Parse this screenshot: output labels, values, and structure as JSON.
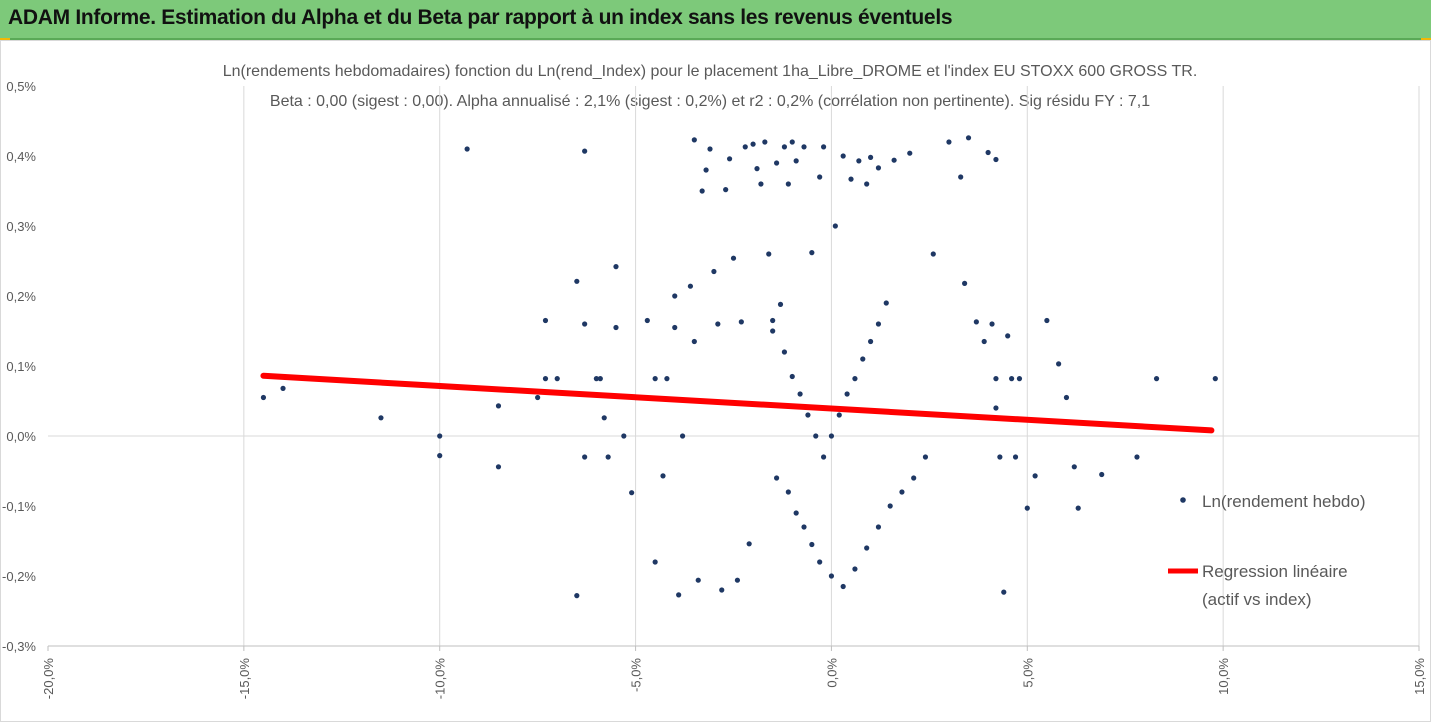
{
  "header": {
    "title": "ADAM Informe. Estimation du Alpha et du Beta par rapport à un index sans les revenus éventuels",
    "accent_color": "#7dc97a"
  },
  "chart_data": {
    "type": "scatter",
    "title": "Ln(rendements hebdomadaires) fonction du Ln(rend_Index) pour le placement 1ha_Libre_DROME et l'index EU STOXX 600 GROSS TR.",
    "subtitle": "Beta : 0,00 (sigest : 0,00). Alpha annualisé : 2,1% (sigest : 0,2%) et r2 : 0,2% (corrélation non pertinente). Sig résidu FY : 7,1",
    "xlabel": "",
    "ylabel": "",
    "xlim": [
      -20,
      15
    ],
    "ylim": [
      -0.3,
      0.5
    ],
    "x_unit": "%",
    "y_unit": "%",
    "x_ticks": [
      "-20,0%",
      "-15,0%",
      "-10,0%",
      "-5,0%",
      "0,0%",
      "5,0%",
      "10,0%",
      "15,0%"
    ],
    "y_ticks": [
      "-0,3%",
      "-0,2%",
      "-0,1%",
      "0,0%",
      "0,1%",
      "0,2%",
      "0,3%",
      "0,4%",
      "0,5%"
    ],
    "grid": "vertical",
    "legend_position": "right",
    "series": [
      {
        "name": "Ln(rendement hebdo)",
        "kind": "scatter",
        "color": "#1f3864",
        "points": [
          [
            -14.5,
            0.055
          ],
          [
            -14.0,
            0.068
          ],
          [
            -11.5,
            0.026
          ],
          [
            -10.0,
            0.0
          ],
          [
            -10.0,
            -0.028
          ],
          [
            -9.3,
            0.41
          ],
          [
            -8.5,
            0.043
          ],
          [
            -8.5,
            -0.044
          ],
          [
            -7.5,
            0.055
          ],
          [
            -7.3,
            0.165
          ],
          [
            -7.3,
            0.082
          ],
          [
            -7.0,
            0.082
          ],
          [
            -6.5,
            0.221
          ],
          [
            -6.5,
            -0.228
          ],
          [
            -6.3,
            0.407
          ],
          [
            -6.3,
            0.16
          ],
          [
            -6.3,
            -0.03
          ],
          [
            -6.0,
            0.082
          ],
          [
            -5.9,
            0.082
          ],
          [
            -5.8,
            0.026
          ],
          [
            -5.7,
            -0.03
          ],
          [
            -5.5,
            0.242
          ],
          [
            -5.5,
            0.155
          ],
          [
            -5.3,
            0.0
          ],
          [
            -5.1,
            -0.081
          ],
          [
            -5.0,
            0.055
          ],
          [
            -4.7,
            0.165
          ],
          [
            -4.5,
            0.082
          ],
          [
            -4.5,
            -0.18
          ],
          [
            -4.3,
            -0.057
          ],
          [
            -4.2,
            0.082
          ],
          [
            -4.0,
            0.2
          ],
          [
            -4.0,
            0.155
          ],
          [
            -3.9,
            -0.227
          ],
          [
            -3.8,
            0.0
          ],
          [
            -3.6,
            0.214
          ],
          [
            -3.5,
            0.423
          ],
          [
            -3.5,
            0.135
          ],
          [
            -3.4,
            -0.206
          ],
          [
            -3.3,
            0.35
          ],
          [
            -3.2,
            0.38
          ],
          [
            -3.1,
            0.41
          ],
          [
            -3.0,
            0.235
          ],
          [
            -2.9,
            0.16
          ],
          [
            -2.8,
            -0.22
          ],
          [
            -2.7,
            0.352
          ],
          [
            -2.6,
            0.396
          ],
          [
            -2.5,
            0.254
          ],
          [
            -2.4,
            -0.206
          ],
          [
            -2.3,
            0.163
          ],
          [
            -2.2,
            0.413
          ],
          [
            -2.1,
            -0.154
          ],
          [
            -2.0,
            0.417
          ],
          [
            -1.9,
            0.382
          ],
          [
            -1.8,
            0.36
          ],
          [
            -1.7,
            0.42
          ],
          [
            -1.6,
            0.26
          ],
          [
            -1.5,
            0.165
          ],
          [
            -1.4,
            0.39
          ],
          [
            -1.3,
            0.188
          ],
          [
            -1.2,
            0.413
          ],
          [
            -1.1,
            0.36
          ],
          [
            -1.0,
            0.42
          ],
          [
            -0.9,
            0.393
          ],
          [
            -0.7,
            0.413
          ],
          [
            -0.5,
            0.262
          ],
          [
            -0.3,
            0.37
          ],
          [
            -0.2,
            0.413
          ],
          [
            0.1,
            0.3
          ],
          [
            0.3,
            0.4
          ],
          [
            0.5,
            0.367
          ],
          [
            0.7,
            0.393
          ],
          [
            0.9,
            0.36
          ],
          [
            1.0,
            0.398
          ],
          [
            1.2,
            0.383
          ],
          [
            1.6,
            0.394
          ],
          [
            2.0,
            0.404
          ],
          [
            2.6,
            0.26
          ],
          [
            3.0,
            0.42
          ],
          [
            3.3,
            0.37
          ],
          [
            3.5,
            0.426
          ],
          [
            4.0,
            0.405
          ],
          [
            4.2,
            0.395
          ],
          [
            3.4,
            0.218
          ],
          [
            3.7,
            0.163
          ],
          [
            3.9,
            0.135
          ],
          [
            4.1,
            0.16
          ],
          [
            4.2,
            0.082
          ],
          [
            4.2,
            0.04
          ],
          [
            4.3,
            -0.03
          ],
          [
            4.4,
            -0.223
          ],
          [
            4.5,
            0.143
          ],
          [
            4.6,
            0.082
          ],
          [
            4.7,
            -0.03
          ],
          [
            4.8,
            0.082
          ],
          [
            5.0,
            -0.103
          ],
          [
            5.2,
            -0.057
          ],
          [
            5.5,
            0.165
          ],
          [
            5.8,
            0.103
          ],
          [
            6.0,
            0.055
          ],
          [
            6.2,
            -0.044
          ],
          [
            6.3,
            -0.103
          ],
          [
            6.9,
            -0.055
          ],
          [
            7.8,
            -0.03
          ],
          [
            8.3,
            0.082
          ],
          [
            9.8,
            0.082
          ],
          [
            -1.5,
            0.15
          ],
          [
            -1.2,
            0.12
          ],
          [
            -1.0,
            0.085
          ],
          [
            -0.8,
            0.06
          ],
          [
            -0.6,
            0.03
          ],
          [
            -0.4,
            0.0
          ],
          [
            -0.2,
            -0.03
          ],
          [
            0.0,
            0.0
          ],
          [
            0.2,
            0.03
          ],
          [
            0.4,
            0.06
          ],
          [
            0.6,
            0.082
          ],
          [
            0.8,
            0.11
          ],
          [
            1.0,
            0.135
          ],
          [
            1.2,
            0.16
          ],
          [
            1.4,
            0.19
          ],
          [
            -1.4,
            -0.06
          ],
          [
            -1.1,
            -0.08
          ],
          [
            -0.9,
            -0.11
          ],
          [
            -0.7,
            -0.13
          ],
          [
            -0.5,
            -0.155
          ],
          [
            -0.3,
            -0.18
          ],
          [
            0.0,
            -0.2
          ],
          [
            0.3,
            -0.215
          ],
          [
            0.6,
            -0.19
          ],
          [
            0.9,
            -0.16
          ],
          [
            1.2,
            -0.13
          ],
          [
            1.5,
            -0.1
          ],
          [
            1.8,
            -0.08
          ],
          [
            2.1,
            -0.06
          ],
          [
            2.4,
            -0.03
          ]
        ]
      },
      {
        "name": "Regression linéaire (actif vs index)",
        "kind": "line",
        "color": "#ff0000",
        "x": [
          -14.5,
          9.7
        ],
        "y": [
          0.086,
          0.008
        ]
      }
    ]
  }
}
